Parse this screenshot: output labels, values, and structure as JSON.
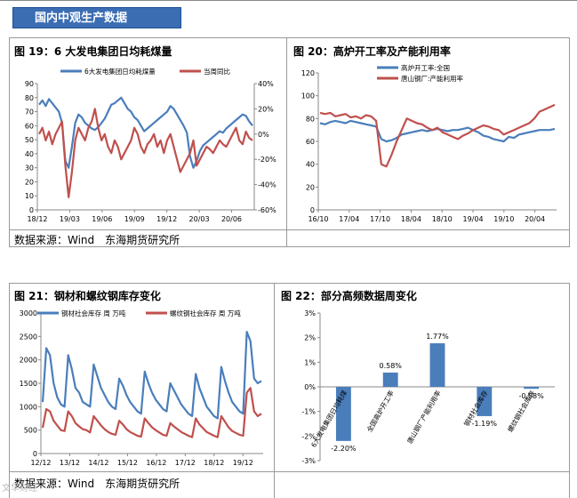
{
  "banner": "国内中观生产数据",
  "source_label": "数据来源：Wind　东海期货研究所",
  "watermark": "文华财经",
  "colors": {
    "blue": "#4a7ebb",
    "red": "#c0504d",
    "banner": "#3b6db3",
    "grid": "#d9d9d9"
  },
  "chart_data": [
    {
      "id": "fig19",
      "type": "line",
      "title": "图 19：6 大发电集团日均耗煤量",
      "series_names": [
        "6大发电集团日均耗煤量",
        "当周同比"
      ],
      "x_ticks": [
        "18/12",
        "19/03",
        "19/06",
        "19/09",
        "19/12",
        "20/03",
        "20/06"
      ],
      "y_left": {
        "min": 0,
        "max": 90,
        "ticks": [
          "0",
          "10",
          "20",
          "30",
          "40",
          "50",
          "60",
          "70",
          "80",
          "90"
        ]
      },
      "y_right": {
        "min": -60,
        "max": 40,
        "ticks": [
          "-60%",
          "-40%",
          "-20%",
          "0%",
          "20%",
          "40%"
        ]
      },
      "series": [
        {
          "name": "6大发电集团日均耗煤量",
          "axis": "left",
          "color": "#4a7ebb",
          "values": [
            75,
            78,
            74,
            79,
            76,
            73,
            70,
            62,
            35,
            30,
            45,
            62,
            68,
            66,
            62,
            60,
            58,
            57,
            59,
            62,
            65,
            70,
            75,
            76,
            78,
            80,
            76,
            72,
            70,
            66,
            64,
            60,
            56,
            58,
            60,
            62,
            64,
            66,
            68,
            70,
            74,
            72,
            68,
            64,
            60,
            55,
            38,
            30,
            35,
            42,
            46,
            48,
            50,
            52,
            54,
            56,
            55,
            58,
            60,
            62,
            64,
            66,
            68,
            67,
            63,
            60
          ]
        },
        {
          "name": "当周同比",
          "axis": "right",
          "color": "#c0504d",
          "values": [
            0,
            5,
            -5,
            2,
            -8,
            0,
            5,
            10,
            -25,
            -50,
            -30,
            -5,
            5,
            0,
            -5,
            5,
            10,
            20,
            5,
            -5,
            0,
            -10,
            -15,
            -5,
            -10,
            -20,
            -15,
            -10,
            -5,
            5,
            0,
            -10,
            -15,
            -8,
            -5,
            0,
            -10,
            -5,
            -15,
            -5,
            0,
            -10,
            -20,
            -30,
            -25,
            -20,
            -15,
            -5,
            -25,
            -20,
            -15,
            -10,
            -12,
            -15,
            -10,
            -5,
            -8,
            -10,
            -5,
            0,
            5,
            -5,
            -8,
            2,
            -3,
            -5
          ]
        }
      ]
    },
    {
      "id": "fig20",
      "type": "line",
      "title": "图 20：高炉开工率及产能利用率",
      "series_names": [
        "高炉开工率:全国",
        "唐山钢厂:产能利用率"
      ],
      "x_ticks": [
        "16/10",
        "17/04",
        "17/10",
        "18/04",
        "18/10",
        "19/04",
        "19/10",
        "20/04"
      ],
      "y_left": {
        "min": 0,
        "max": 120,
        "ticks": [
          "0",
          "20",
          "40",
          "60",
          "80",
          "100",
          "120"
        ]
      },
      "series": [
        {
          "name": "高炉开工率:全国",
          "axis": "left",
          "color": "#4a7ebb",
          "values": [
            76,
            75,
            77,
            78,
            77,
            76,
            78,
            77,
            76,
            75,
            74,
            73,
            62,
            60,
            61,
            63,
            66,
            67,
            68,
            69,
            70,
            69,
            70,
            71,
            70,
            69,
            70,
            70,
            71,
            72,
            70,
            68,
            65,
            64,
            62,
            61,
            60,
            64,
            63,
            66,
            67,
            68,
            69,
            70,
            70,
            70,
            71
          ]
        },
        {
          "name": "唐山钢厂:产能利用率",
          "axis": "left",
          "color": "#c0504d",
          "values": [
            85,
            84,
            85,
            82,
            83,
            84,
            81,
            82,
            80,
            83,
            82,
            78,
            40,
            38,
            48,
            60,
            70,
            80,
            78,
            76,
            75,
            72,
            70,
            72,
            68,
            66,
            64,
            62,
            65,
            67,
            70,
            72,
            74,
            73,
            71,
            70,
            66,
            68,
            70,
            72,
            74,
            76,
            80,
            86,
            88,
            90,
            92
          ]
        }
      ]
    },
    {
      "id": "fig21",
      "type": "line",
      "title": "图 21：钢材和螺纹钢库存变化",
      "series_names": [
        "钢材社会库存 周 万吨",
        "螺纹钢社会库存 周 万吨"
      ],
      "x_ticks": [
        "12/12",
        "13/12",
        "14/12",
        "15/12",
        "16/12",
        "17/12",
        "18/12",
        "19/12"
      ],
      "y_left": {
        "min": 0,
        "max": 3000,
        "ticks": [
          "0",
          "500",
          "1000",
          "1500",
          "2000",
          "2500",
          "3000"
        ]
      },
      "series": [
        {
          "name": "钢材社会库存 周 万吨",
          "axis": "left",
          "color": "#4a7ebb",
          "values": [
            1100,
            2250,
            2100,
            1500,
            1200,
            1050,
            1000,
            2100,
            1800,
            1400,
            1300,
            1100,
            1050,
            1000,
            1900,
            1650,
            1400,
            1250,
            1100,
            1000,
            950,
            1600,
            1450,
            1250,
            1100,
            1000,
            900,
            850,
            1750,
            1500,
            1300,
            1150,
            1050,
            950,
            900,
            1500,
            1350,
            1200,
            1050,
            950,
            850,
            800,
            1700,
            1400,
            1200,
            1000,
            900,
            800,
            750,
            1850,
            1550,
            1300,
            1100,
            1000,
            900,
            850,
            2600,
            2400,
            1600,
            1500,
            1550
          ]
        },
        {
          "name": "螺纹钢社会库存 周 万吨",
          "axis": "left",
          "color": "#c0504d",
          "values": [
            550,
            950,
            900,
            700,
            600,
            500,
            480,
            900,
            800,
            650,
            580,
            520,
            500,
            450,
            800,
            700,
            600,
            520,
            460,
            420,
            400,
            700,
            620,
            520,
            460,
            420,
            380,
            360,
            750,
            650,
            560,
            500,
            450,
            400,
            380,
            650,
            580,
            520,
            460,
            420,
            380,
            350,
            750,
            620,
            540,
            460,
            420,
            380,
            350,
            800,
            680,
            560,
            480,
            440,
            400,
            380,
            1300,
            1400,
            900,
            800,
            850
          ]
        }
      ]
    },
    {
      "id": "fig22",
      "type": "bar",
      "title": "图 22：部分高频数据周变化",
      "categories": [
        "6大发电集团日均耗煤",
        "全国高炉开工率",
        "唐山钢厂产能利用率",
        "钢材社会库存",
        "螺纹钢社会库存"
      ],
      "values": [
        -2.2,
        0.58,
        1.77,
        -1.19,
        -0.08
      ],
      "value_labels": [
        "-2.20%",
        "0.58%",
        "1.77%",
        "-1.19%",
        "-0.08%"
      ],
      "y_left": {
        "min": -3,
        "max": 3,
        "ticks": [
          "-3%",
          "-2%",
          "-1%",
          "0%",
          "1%",
          "2%",
          "3%"
        ]
      }
    }
  ]
}
